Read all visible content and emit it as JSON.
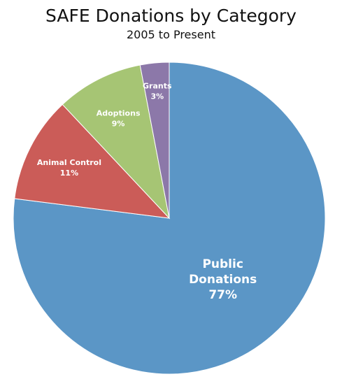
{
  "chart_data": {
    "type": "pie",
    "title": "SAFE Donations by Category",
    "subtitle": "2005 to Present",
    "slices": [
      {
        "label": "Public Donations",
        "label_lines": [
          "Public",
          "Donations"
        ],
        "percent_label": "77%",
        "value": 77,
        "color": "#5b96c6"
      },
      {
        "label": "Animal Control",
        "label_lines": [
          "Animal Control"
        ],
        "percent_label": "11%",
        "value": 11,
        "color": "#cb5c58"
      },
      {
        "label": "Adoptions",
        "label_lines": [
          "Adoptions"
        ],
        "percent_label": "9%",
        "value": 9,
        "color": "#a6c574"
      },
      {
        "label": "Grants",
        "label_lines": [
          "Grants"
        ],
        "percent_label": "3%",
        "value": 3,
        "color": "#8c78a9"
      }
    ],
    "start_angle": "12 o'clock",
    "direction": "clockwise",
    "legend": "none"
  }
}
